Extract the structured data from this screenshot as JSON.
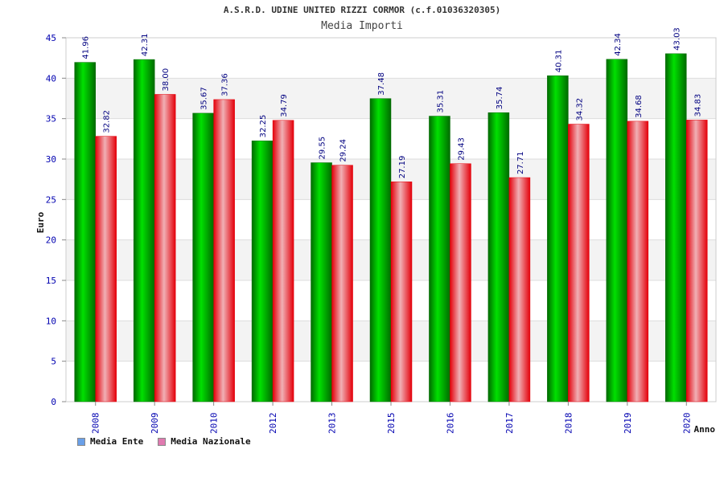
{
  "colors": {
    "ente_dark": "#006a00",
    "ente_light": "#00e000",
    "naz_dark": "#e4000a",
    "naz_light": "#f0b0b5",
    "legend_ente": "#6aa0e8",
    "legend_naz": "#e07ab0",
    "axis_text": "#0000b0",
    "label_text": "#000080",
    "band": "#f3f3f3",
    "grid": "#dddddd"
  },
  "chart_data": {
    "type": "bar",
    "title": "A.S.R.D. UDINE UNITED RIZZI CORMOR (c.f.01036320305)",
    "subtitle": "Media Importi",
    "xlabel": "Anno",
    "ylabel": "Euro",
    "ylim": [
      0,
      45
    ],
    "yticks": [
      0,
      5,
      10,
      15,
      20,
      25,
      30,
      35,
      40,
      45
    ],
    "categories": [
      "2008",
      "2009",
      "2010",
      "2012",
      "2013",
      "2015",
      "2016",
      "2017",
      "2018",
      "2019",
      "2020"
    ],
    "series": [
      {
        "name": "Media Ente",
        "values": [
          41.96,
          42.31,
          35.67,
          32.25,
          29.55,
          37.48,
          35.31,
          35.74,
          40.31,
          42.34,
          43.03
        ],
        "labels": [
          "41.96",
          "42.31",
          "35.67",
          "32.25",
          "29.55",
          "37.48",
          "35.31",
          "35.74",
          "40.31",
          "42.34",
          "43.03"
        ]
      },
      {
        "name": "Media Nazionale",
        "values": [
          32.82,
          38.0,
          37.36,
          34.79,
          29.24,
          27.19,
          29.43,
          27.71,
          34.32,
          34.68,
          34.83
        ],
        "labels": [
          "32.82",
          "38.00",
          "37.36",
          "34.79",
          "29.24",
          "27.19",
          "29.43",
          "27.71",
          "34.32",
          "34.68",
          "34.83"
        ]
      }
    ],
    "legend_position": "bottom-left"
  }
}
